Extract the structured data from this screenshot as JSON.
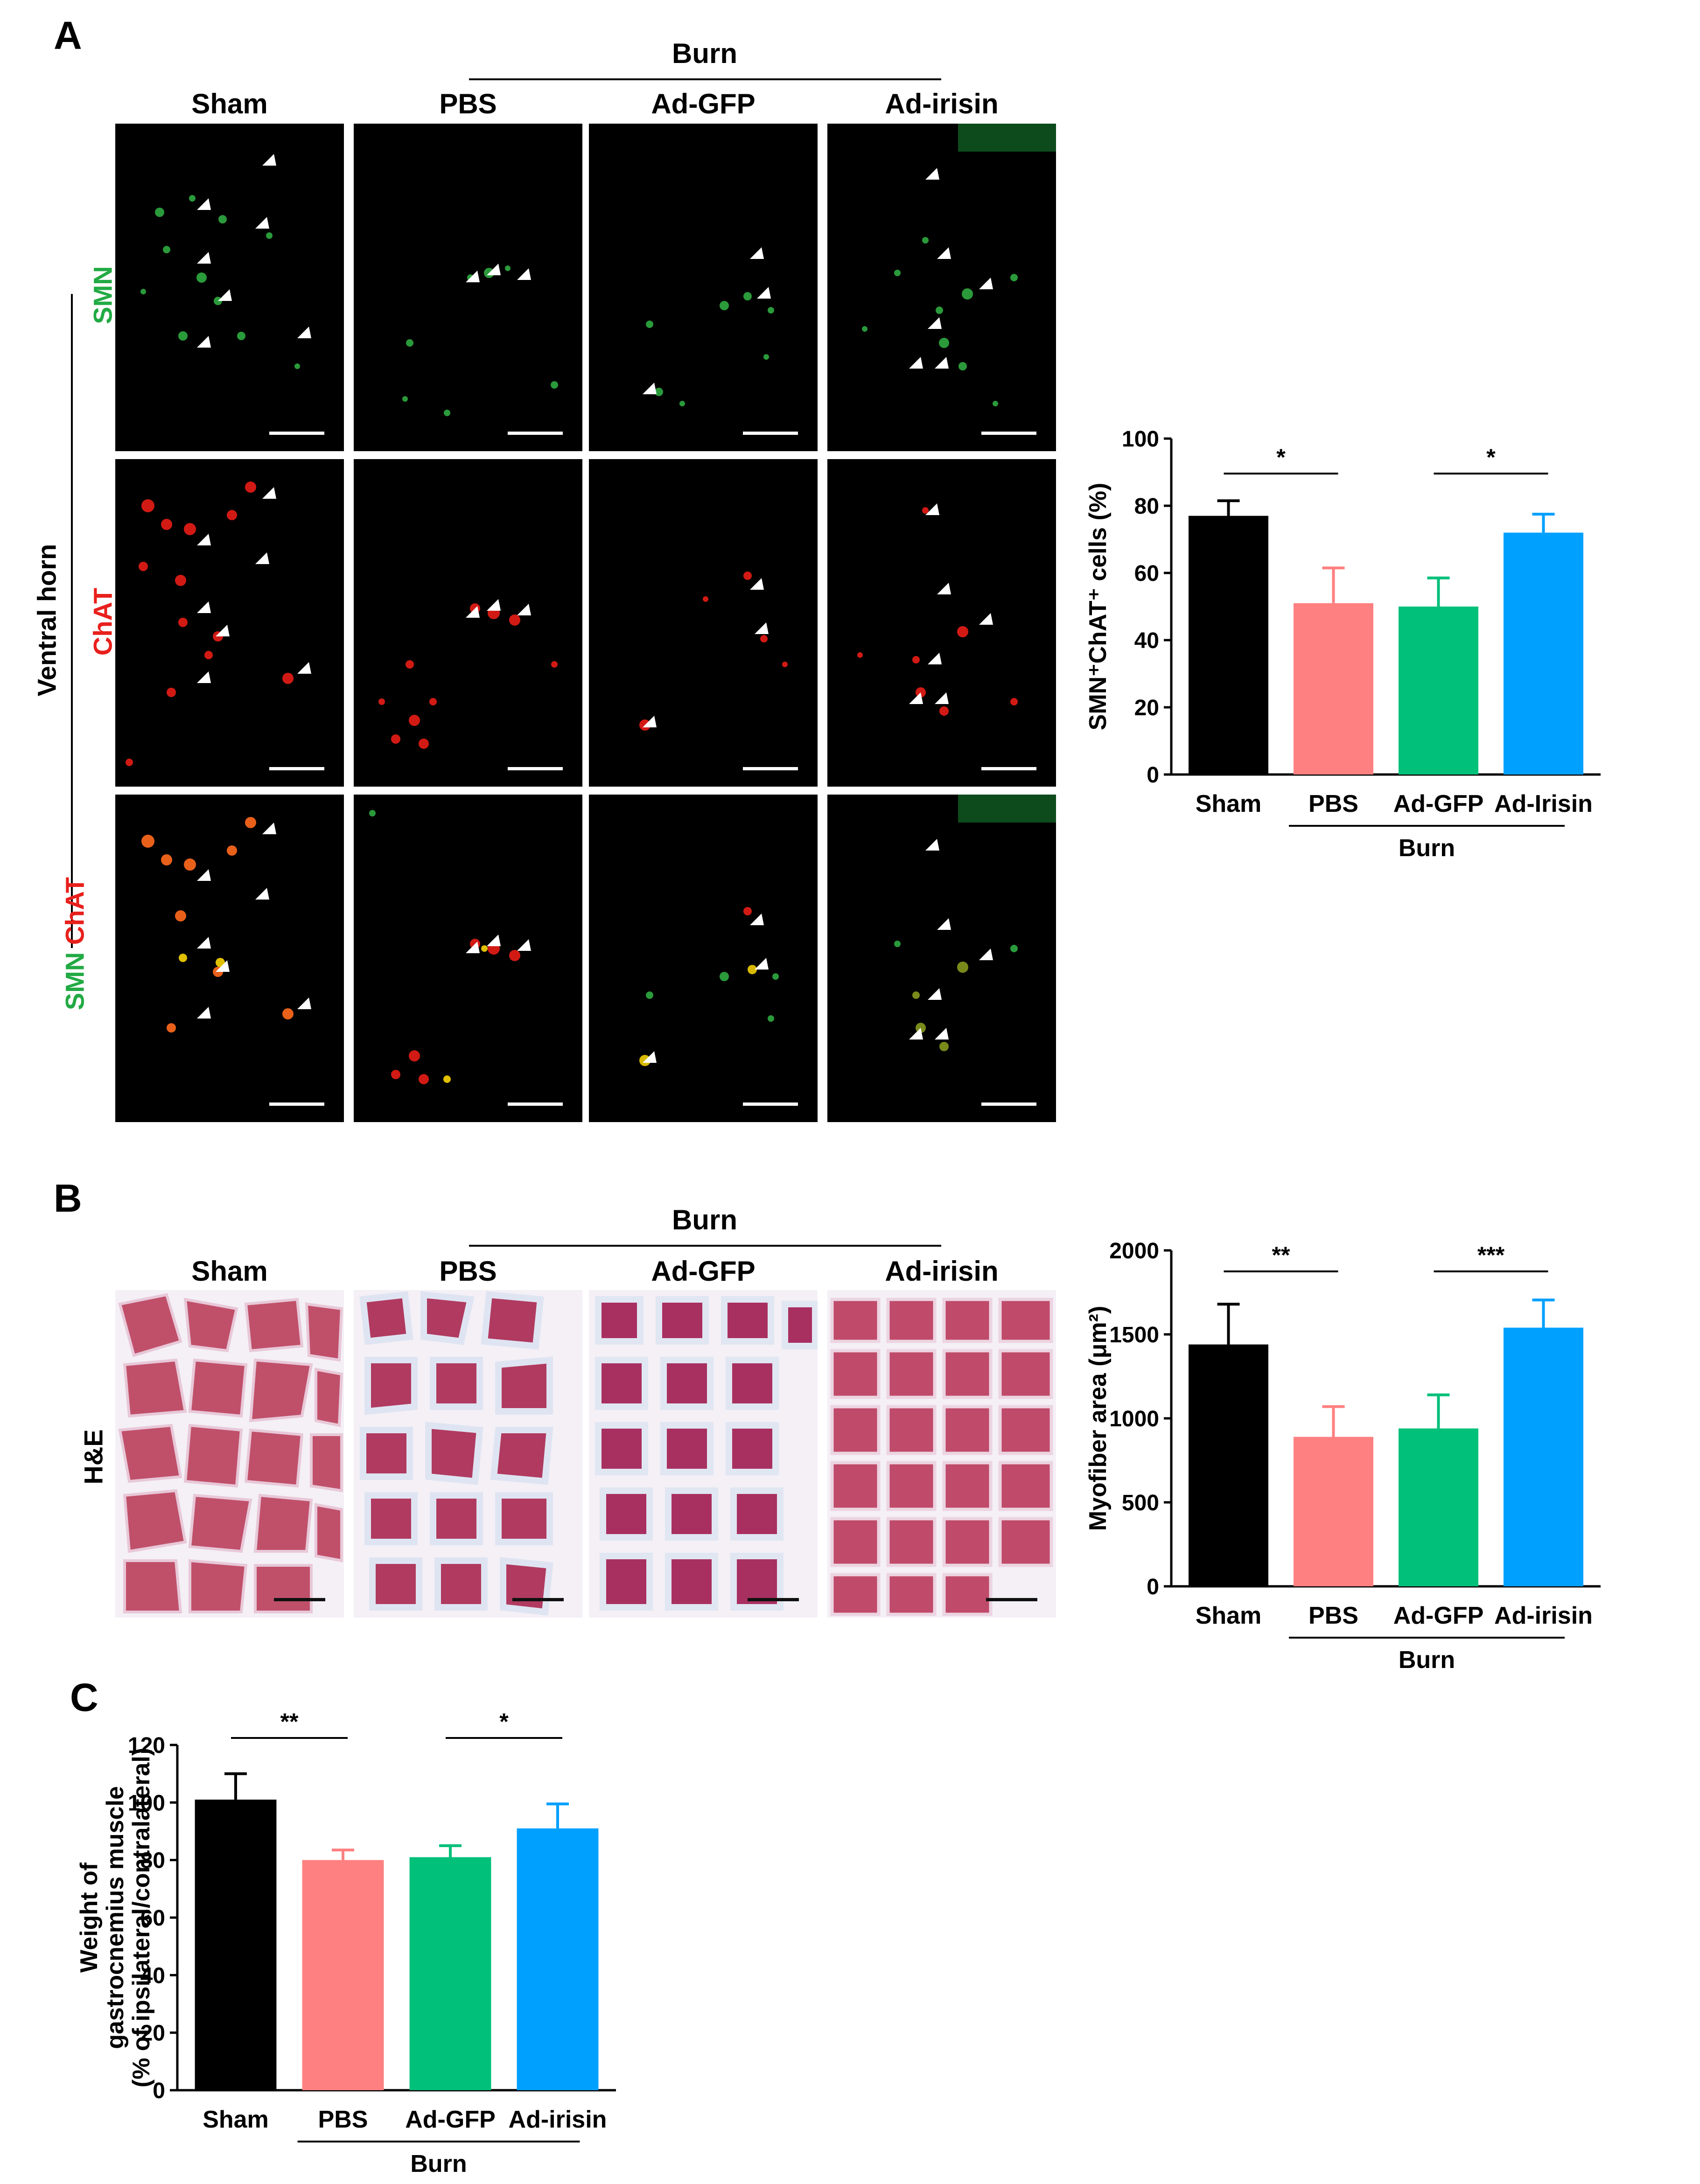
{
  "panelA": {
    "letter": "A",
    "burn_label": "Burn",
    "groups": [
      "Sham",
      "PBS",
      "Ad-GFP",
      "Ad-irisin"
    ],
    "side_label": "Ventral horn",
    "row_labels": {
      "smn": "SMN",
      "chat": "ChAT",
      "merge_smn": "SMN",
      "merge_chat": "ChAT"
    },
    "colors": {
      "smn": "#22aa44",
      "chat": "#e8201c"
    }
  },
  "panelB": {
    "letter": "B",
    "burn_label": "Burn",
    "groups": [
      "Sham",
      "PBS",
      "Ad-GFP",
      "Ad-irisin"
    ],
    "row_label": "H&E"
  },
  "panelC": {
    "letter": "C"
  },
  "colors": {
    "sham": "#000000",
    "pbs": "#ff8080",
    "adgfp": "#00c07a",
    "irisin": "#00a0ff"
  },
  "chart_data": [
    {
      "id": "A",
      "type": "bar",
      "categories": [
        "Sham",
        "PBS",
        "Ad-GFP",
        "Ad-Irisin"
      ],
      "values": [
        77,
        51,
        50,
        72
      ],
      "errors": [
        4.5,
        10.5,
        8.5,
        5.5
      ],
      "ylabel": "SMN⁺ChAT⁺ cells (%)",
      "ylim": [
        0,
        100
      ],
      "yticks": [
        0,
        20,
        40,
        60,
        80,
        100
      ],
      "group_label": "Burn",
      "significance": [
        {
          "from": 0,
          "to": 1,
          "label": "*"
        },
        {
          "from": 2,
          "to": 3,
          "label": "*"
        }
      ]
    },
    {
      "id": "B",
      "type": "bar",
      "categories": [
        "Sham",
        "PBS",
        "Ad-GFP",
        "Ad-irisin"
      ],
      "values": [
        1440,
        890,
        940,
        1540
      ],
      "errors": [
        240,
        180,
        200,
        165
      ],
      "ylabel": "Myofiber area (μm²)",
      "ylim": [
        0,
        2000
      ],
      "yticks": [
        0,
        500,
        1000,
        1500,
        2000
      ],
      "group_label": "Burn",
      "significance": [
        {
          "from": 0,
          "to": 1,
          "label": "**"
        },
        {
          "from": 2,
          "to": 3,
          "label": "***"
        }
      ]
    },
    {
      "id": "C",
      "type": "bar",
      "categories": [
        "Sham",
        "PBS",
        "Ad-GFP",
        "Ad-irisin"
      ],
      "values": [
        101,
        80,
        81,
        91
      ],
      "errors": [
        9,
        3.5,
        4,
        8.5
      ],
      "ylabel": "Weight of gastrocnemius muscle (% of ipsilateral/contralateral)",
      "ylabel_lines": [
        "Weight of",
        "gastrocnemius muscle",
        "(% of ipsilateral/contralateral)"
      ],
      "ylim": [
        0,
        120
      ],
      "yticks": [
        0,
        20,
        40,
        60,
        80,
        100,
        120
      ],
      "group_label": "Burn",
      "significance": [
        {
          "from": 0,
          "to": 1,
          "label": "**"
        },
        {
          "from": 2,
          "to": 3,
          "label": "*"
        }
      ]
    }
  ]
}
